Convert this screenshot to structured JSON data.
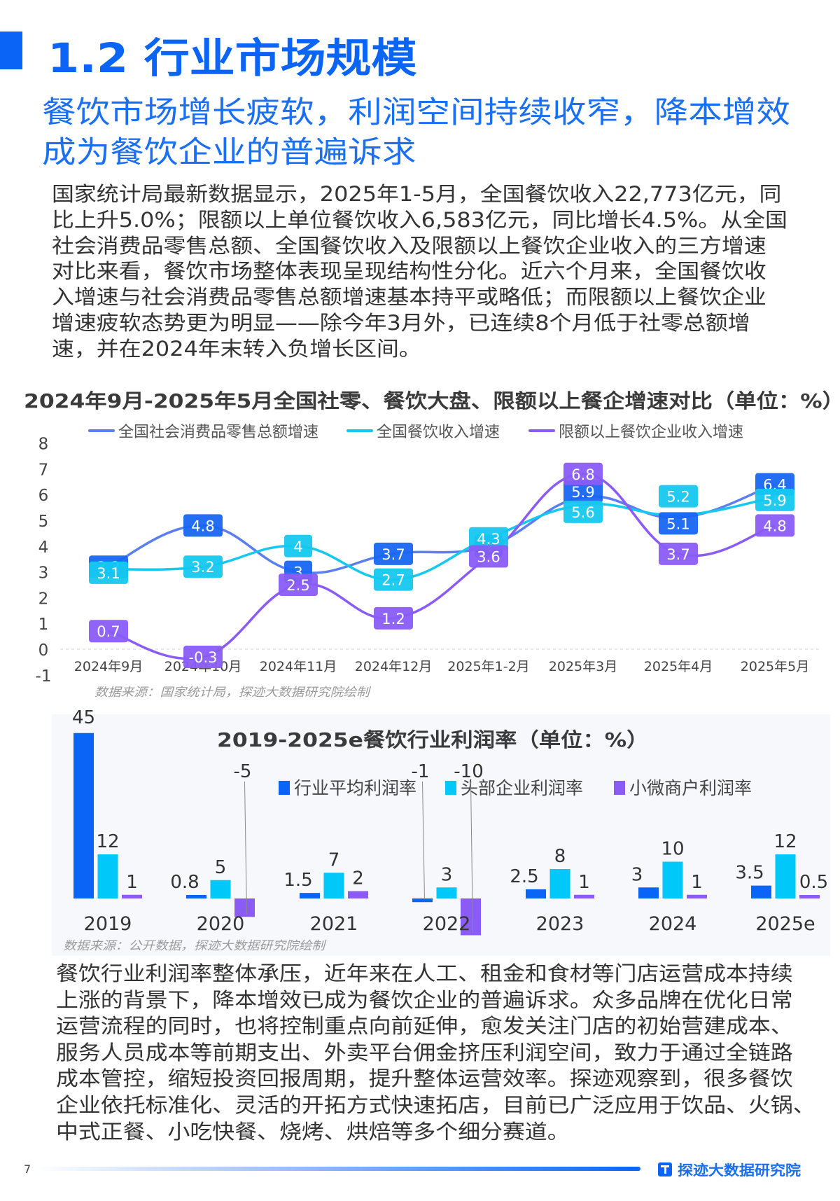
{
  "header": {
    "section_title": "1.2 行业市场规模",
    "subtitle_lines": [
      "餐饮市场增长疲软，利润空间持续收窄，降本增效",
      "成为餐饮企业的普遍诉求"
    ]
  },
  "intro_paragraph_lines": [
    "国家统计局最新数据显示，2025年1-5月，全国餐饮收入22,773亿元，同",
    "比上升5.0%；限额以上单位餐饮收入6,583亿元，同比增长4.5%。从全国",
    "社会消费品零售总额、全国餐饮收入及限额以上餐饮企业收入的三方增速",
    "对比来看，餐饮市场整体表现呈现结构性分化。近六个月来，全国餐饮收",
    "入增速与社会消费品零售总额增速基本持平或略低；而限额以上餐饮企业",
    "增速疲软态势更为明显——除今年3月外，已连续8个月低于社零总额增",
    "速，并在2024年末转入负增长区间。"
  ],
  "closing_paragraph_lines": [
    "餐饮行业利润率整体承压，近年来在人工、租金和食材等门店运营成本持续",
    "上涨的背景下，降本增效已成为餐饮企业的普遍诉求。众多品牌在优化日常",
    "运营流程的同时，也将控制重点向前延伸，愈发关注门店的初始营建成本、",
    "服务人员成本等前期支出、外卖平台佣金挤压利润空间，致力于通过全链路",
    "成本管控，缩短投资回报周期，提升整体运营效率。探迹观察到，很多餐饮",
    "企业依托标准化、灵活的开拓方式快速拓店，目前已广泛应用于饮品、火锅、",
    "中式正餐、小吃快餐、烧烤、烘焙等多个细分赛道。"
  ],
  "footer": {
    "page_number": "7",
    "brand_name": "探迹大数据研究院",
    "brand_icon": "tungee-logo-icon"
  },
  "colors": {
    "brand_blue": "#0a64f5",
    "series_retail": "#1766f2",
    "series_retail_line": "#5b7ff0",
    "series_catering": "#15c8ef",
    "series_above_quota": "#8a5cf5",
    "bar_avg": "#0a64f5",
    "bar_top": "#00c8f8",
    "bar_small": "#8a5cf5"
  },
  "chart_data": [
    {
      "type": "line",
      "title": "2024年9月-2025年5月全国社零、餐饮大盘、限额以上餐企增速对比（单位：%）",
      "source": "数据来源：国家统计局，探迹大数据研究院绘制",
      "categories": [
        "2024年9月",
        "2024年10月",
        "2024年11月",
        "2024年12月",
        "2025年1-2月",
        "2025年3月",
        "2025年4月",
        "2025年5月"
      ],
      "series": [
        {
          "name": "全国社会消费品零售总额增速",
          "values": [
            3.2,
            4.8,
            3,
            3.7,
            4,
            5.9,
            5.1,
            6.4
          ]
        },
        {
          "name": "全国餐饮收入增速",
          "values": [
            3.1,
            3.2,
            4,
            2.7,
            4.3,
            5.6,
            5.2,
            5.9
          ]
        },
        {
          "name": "限额以上餐饮企业收入增速",
          "values": [
            0.7,
            -0.3,
            2.5,
            1.2,
            3.6,
            6.8,
            3.7,
            4.8
          ]
        }
      ],
      "yticks": [
        8,
        7,
        6,
        5,
        4,
        3,
        2,
        1,
        0,
        -1
      ],
      "ylim": [
        -1,
        8
      ],
      "xlabel": "",
      "ylabel": "",
      "legend_position": "top",
      "grid": false
    },
    {
      "type": "bar",
      "title": "2019-2025e餐饮行业利润率（单位：%）",
      "source": "数据来源：公开数据，探迹大数据研究院绘制",
      "categories": [
        "2019",
        "2020",
        "2021",
        "2022",
        "2023",
        "2024",
        "2025e"
      ],
      "series": [
        {
          "name": "行业平均利润率",
          "values": [
            45,
            0.8,
            1.5,
            -1,
            2.5,
            3,
            3.5
          ]
        },
        {
          "name": "头部企业利润率",
          "values": [
            12,
            5,
            7,
            3,
            8,
            10,
            12
          ]
        },
        {
          "name": "小微商户利润率",
          "values": [
            1,
            -5,
            2,
            -10,
            1,
            1,
            0.5
          ]
        }
      ],
      "xlabel": "",
      "ylabel": "",
      "legend_position": "top",
      "grid": false
    }
  ]
}
